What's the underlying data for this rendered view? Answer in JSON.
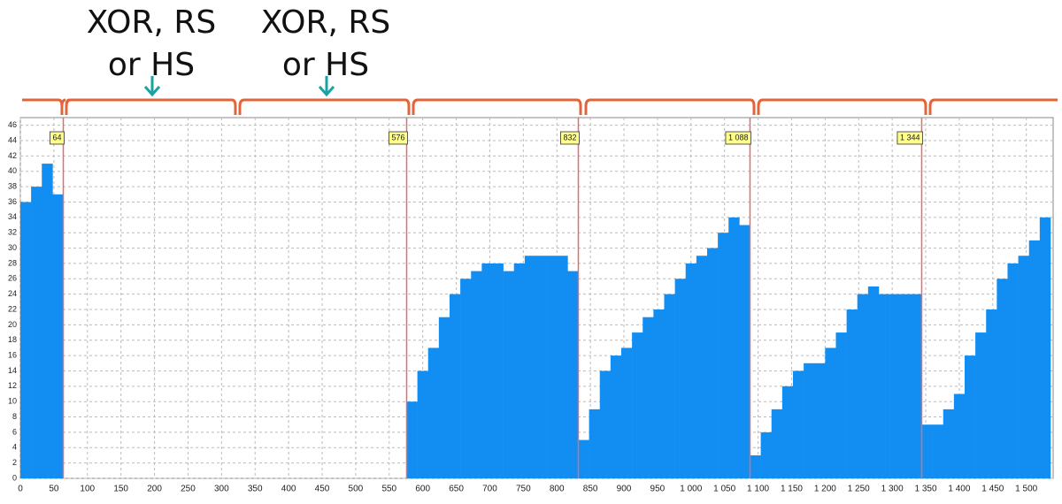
{
  "chart_data": {
    "type": "bar",
    "annotations": [
      "XOR, RS or HS",
      "XOR, RS or HS"
    ],
    "x": [
      0,
      16,
      32,
      48,
      64,
      80,
      96,
      112,
      128,
      144,
      160,
      176,
      192,
      208,
      224,
      240,
      256,
      272,
      288,
      304,
      320,
      336,
      352,
      368,
      384,
      400,
      416,
      432,
      448,
      464,
      480,
      496,
      512,
      528,
      544,
      560,
      576,
      592,
      608,
      624,
      640,
      656,
      672,
      688,
      704,
      720,
      736,
      752,
      768,
      784,
      800,
      816,
      832,
      848,
      864,
      880,
      896,
      912,
      928,
      944,
      960,
      976,
      992,
      1008,
      1024,
      1040,
      1056,
      1072,
      1088,
      1104,
      1120,
      1136,
      1152,
      1168,
      1184,
      1200,
      1216,
      1232,
      1248,
      1264,
      1280,
      1296,
      1312,
      1328,
      1344,
      1360,
      1376,
      1392,
      1408,
      1424,
      1440,
      1456,
      1472,
      1488,
      1504,
      1520
    ],
    "values": [
      36,
      38,
      41,
      37,
      0,
      0,
      0,
      0,
      0,
      0,
      0,
      0,
      0,
      0,
      0,
      0,
      0,
      0,
      0,
      0,
      0,
      0,
      0,
      0,
      0,
      0,
      0,
      0,
      0,
      0,
      0,
      0,
      0,
      0,
      0,
      0,
      10,
      14,
      17,
      21,
      24,
      26,
      27,
      28,
      28,
      27,
      28,
      29,
      29,
      29,
      29,
      27,
      5,
      9,
      14,
      16,
      17,
      19,
      21,
      22,
      24,
      26,
      28,
      29,
      30,
      32,
      34,
      33,
      3,
      6,
      9,
      12,
      14,
      15,
      15,
      17,
      19,
      22,
      24,
      25,
      24,
      24,
      24,
      24,
      7,
      7,
      9,
      11,
      16,
      19,
      22,
      26,
      28,
      29,
      31,
      34
    ],
    "color": "#128ef2",
    "markers": [
      64,
      576,
      832,
      {
        "value": 1088,
        "label": "1 088"
      },
      {
        "value": 1344,
        "label": "1 344"
      }
    ],
    "marker_color": "#e86a6a",
    "xlim": [
      0,
      1540
    ],
    "ylim": [
      0,
      47
    ],
    "xticks": [
      0,
      50,
      100,
      150,
      200,
      250,
      300,
      350,
      400,
      450,
      500,
      550,
      600,
      650,
      700,
      750,
      800,
      850,
      900,
      950,
      {
        "value": 1000,
        "label": "1 000"
      },
      {
        "value": 1050,
        "label": "1 050"
      },
      {
        "value": 1100,
        "label": "1 100"
      },
      {
        "value": 1150,
        "label": "1 150"
      },
      {
        "value": 1200,
        "label": "1 200"
      },
      {
        "value": 1250,
        "label": "1 250"
      },
      {
        "value": 1300,
        "label": "1 300"
      },
      {
        "value": 1350,
        "label": "1 350"
      },
      {
        "value": 1400,
        "label": "1 400"
      },
      {
        "value": 1450,
        "label": "1 450"
      },
      {
        "value": 1500,
        "label": "1 500"
      }
    ],
    "yticks": [
      0,
      2,
      4,
      6,
      8,
      10,
      12,
      14,
      16,
      18,
      20,
      22,
      24,
      26,
      28,
      30,
      32,
      34,
      36,
      38,
      40,
      42,
      44,
      46
    ],
    "grid": true
  }
}
